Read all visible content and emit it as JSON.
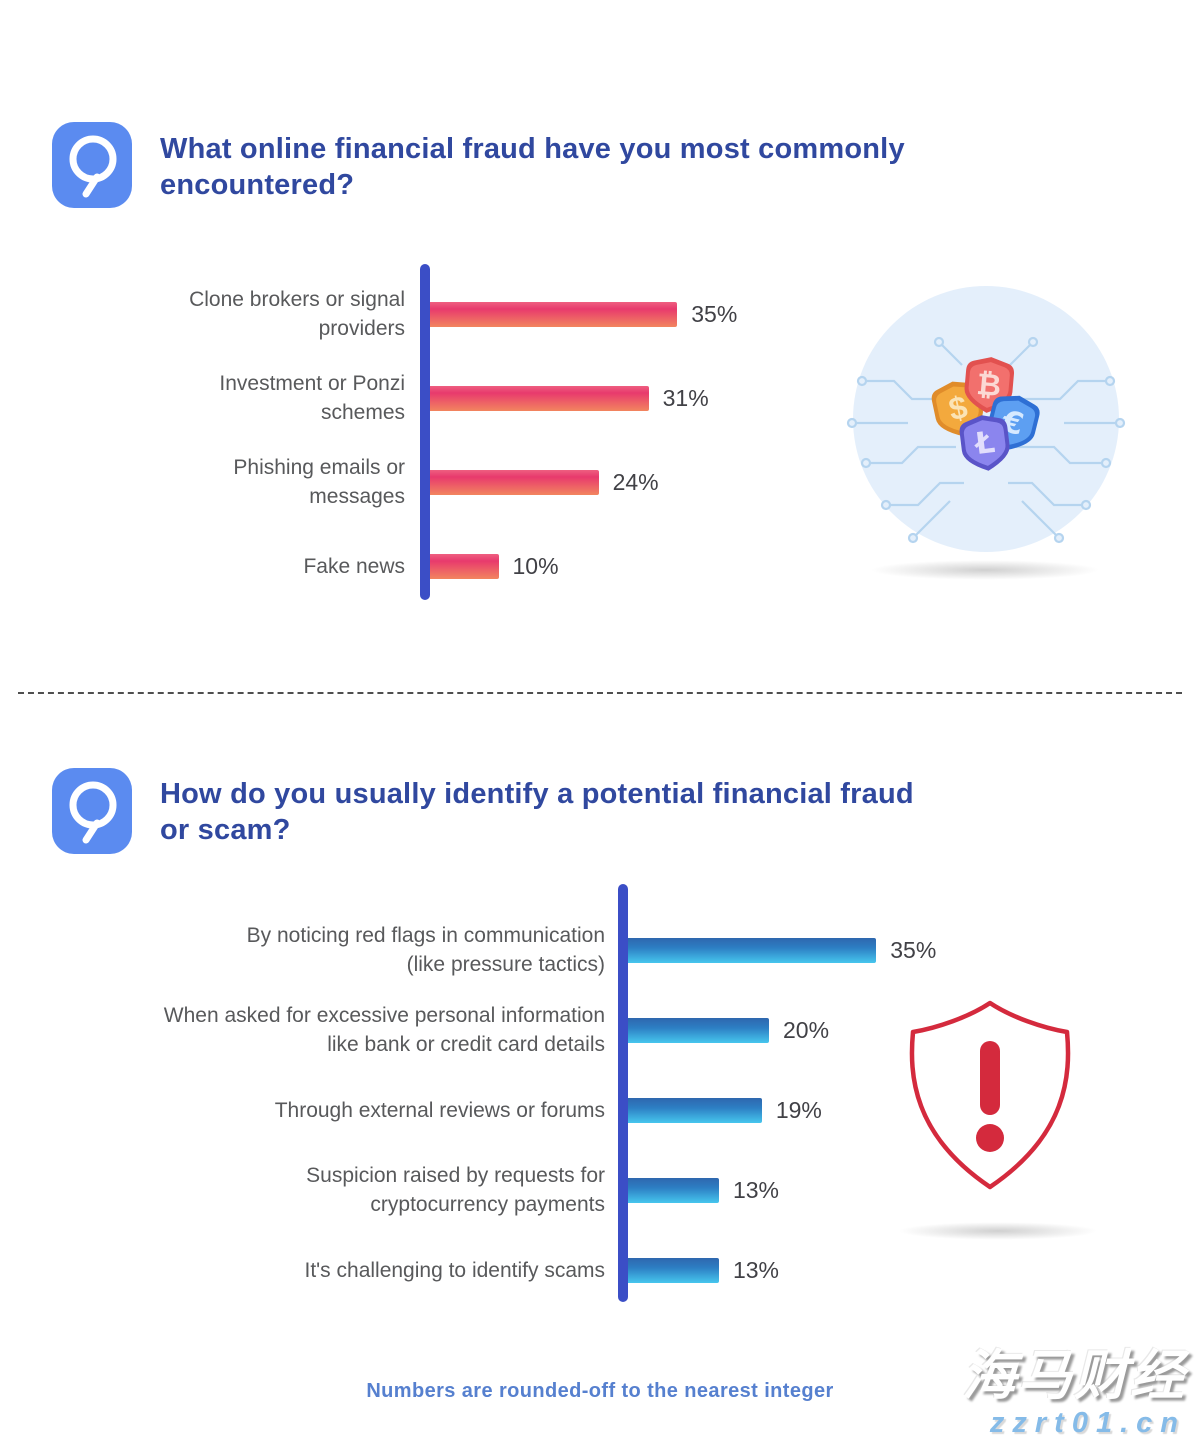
{
  "page": {
    "background": "#ffffff"
  },
  "q1": {
    "icon": "magnifier-question-icon",
    "title_lines": [
      "What online financial fraud have you most commonly",
      "encountered?"
    ]
  },
  "q2": {
    "icon": "magnifier-question-icon",
    "title_lines": [
      "How do you usually identify a potential financial fraud",
      "or scam?"
    ]
  },
  "illustrations": {
    "q1": "currency-shields-circuit-icon",
    "q1_symbols": [
      "$",
      "₿",
      "€",
      "Ł"
    ],
    "q2": "alert-shield-icon",
    "q2_symbol": "!"
  },
  "footer": {
    "note": "Numbers are rounded-off to the nearest integer"
  },
  "watermark": {
    "line1": "海马财经",
    "line2": "zzrt01.cn"
  },
  "colors": {
    "title_blue": "#30489f",
    "axis_blue": "#3b4ec6",
    "label_gray": "#58595b",
    "pink_bar_top": "#e83a6d",
    "pink_bar_bottom": "#f2855f",
    "blue_bar_top": "#2e67ae",
    "blue_bar_bottom": "#46c6ee",
    "question_icon_bg": "#5b8bf0",
    "alert_red": "#d42a3d",
    "footnote_blue": "#5680cf"
  },
  "chart_data": [
    {
      "type": "bar",
      "orientation": "horizontal",
      "title": "What online financial fraud have you most commonly encountered?",
      "categories": [
        "Clone brokers or signal providers",
        "Investment or Ponzi schemes",
        "Phishing emails or messages",
        "Fake news"
      ],
      "label_lines": [
        [
          "Clone brokers or signal",
          "providers"
        ],
        [
          "Investment or Ponzi",
          "schemes"
        ],
        [
          "Phishing emails or",
          "messages"
        ],
        [
          "Fake news"
        ]
      ],
      "values": [
        35,
        31,
        24,
        10
      ],
      "value_labels": [
        "35%",
        "31%",
        "24%",
        "10%"
      ],
      "unit": "%",
      "xlim": [
        0,
        40
      ],
      "grid": false,
      "legend": "none"
    },
    {
      "type": "bar",
      "orientation": "horizontal",
      "title": "How do you usually identify a potential financial fraud or scam?",
      "categories": [
        "By noticing red flags in communication (like pressure tactics)",
        "When asked for excessive personal information like bank or credit card details",
        "Through external reviews or forums",
        "Suspicion raised by requests for cryptocurrency payments",
        "It's challenging to identify scams"
      ],
      "label_lines": [
        [
          "By noticing red flags in communication",
          "(like pressure tactics)"
        ],
        [
          "When asked for excessive personal information",
          "like bank or credit card details"
        ],
        [
          "Through external reviews or forums"
        ],
        [
          "Suspicion raised by requests for",
          "cryptocurrency payments"
        ],
        [
          "It's challenging to identify scams"
        ]
      ],
      "values": [
        35,
        20,
        19,
        13,
        13
      ],
      "value_labels": [
        "35%",
        "20%",
        "19%",
        "13%",
        "13%"
      ],
      "unit": "%",
      "xlim": [
        0,
        40
      ],
      "grid": false,
      "legend": "none"
    }
  ]
}
